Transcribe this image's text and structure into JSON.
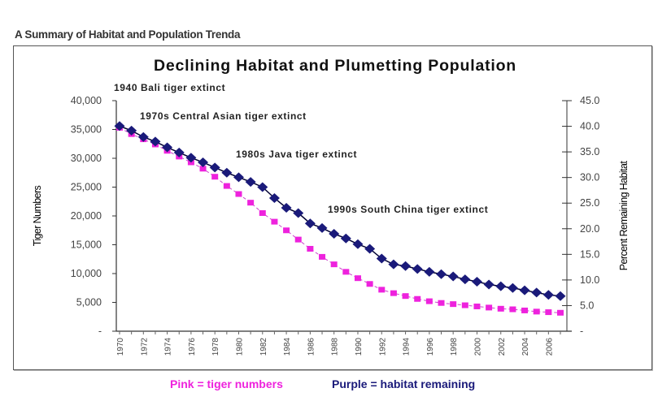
{
  "page": {
    "heading": "A Summary of Habitat and Population Trenda"
  },
  "legend": {
    "pink": "Pink = tiger numbers",
    "purple": "Purple = habitat remaining",
    "pink_color": "#ee22dd",
    "purple_color": "#1a1a7a"
  },
  "chart_data": {
    "type": "line",
    "title": "Declining Habitat and Plumetting Population",
    "xlabel": "",
    "ylabel": "Tiger Numbers",
    "y2label": "Percent Remaining Habitat",
    "ylim": [
      0,
      40000
    ],
    "y2lim": [
      0,
      45
    ],
    "yticks": [
      "-",
      "5,000",
      "10,000",
      "15,000",
      "20,000",
      "25,000",
      "30,000",
      "35,000",
      "40,000"
    ],
    "y2ticks": [
      "-",
      "5.0",
      "10.0",
      "15.0",
      "20.0",
      "25.0",
      "30.0",
      "35.0",
      "40.0",
      "45.0"
    ],
    "xticks": [
      "1970",
      "1972",
      "1974",
      "1976",
      "1978",
      "1980",
      "1982",
      "1984",
      "1986",
      "1988",
      "1990",
      "1992",
      "1994",
      "1996",
      "1998",
      "2000",
      "2002",
      "2004",
      "2006"
    ],
    "x": [
      1970,
      1971,
      1972,
      1973,
      1974,
      1975,
      1976,
      1977,
      1978,
      1979,
      1980,
      1981,
      1982,
      1983,
      1984,
      1985,
      1986,
      1987,
      1988,
      1989,
      1990,
      1991,
      1992,
      1993,
      1994,
      1995,
      1996,
      1997,
      1998,
      1999,
      2000,
      2001,
      2002,
      2003,
      2004,
      2005,
      2006,
      2007
    ],
    "grid": false,
    "legend_position": "bottom",
    "annotations": [
      "1940 Bali tiger extinct",
      "1970s Central Asian tiger extinct",
      "1980s Java tiger extinct",
      "1990s South China tiger extinct"
    ],
    "series": [
      {
        "name": "Tiger numbers",
        "axis": "left",
        "color": "#ee22dd",
        "marker": "square",
        "values": [
          35300,
          34200,
          33300,
          32400,
          31300,
          30300,
          29300,
          28200,
          26800,
          25200,
          23800,
          22300,
          20500,
          19000,
          17500,
          15900,
          14300,
          12900,
          11600,
          10300,
          9200,
          8200,
          7200,
          6600,
          6100,
          5600,
          5200,
          4900,
          4700,
          4500,
          4300,
          4100,
          3900,
          3800,
          3600,
          3400,
          3300,
          3200
        ]
      },
      {
        "name": "Habitat remaining",
        "axis": "left",
        "color": "#1a1a7a",
        "marker": "diamond",
        "values": [
          35600,
          34800,
          33700,
          32900,
          31900,
          31000,
          30100,
          29300,
          28400,
          27500,
          26700,
          25900,
          25000,
          23100,
          21400,
          20500,
          18700,
          17900,
          16900,
          16100,
          15100,
          14300,
          12600,
          11600,
          11300,
          10800,
          10300,
          9900,
          9500,
          9000,
          8600,
          8100,
          7800,
          7500,
          7100,
          6700,
          6300,
          6100
        ]
      }
    ]
  }
}
